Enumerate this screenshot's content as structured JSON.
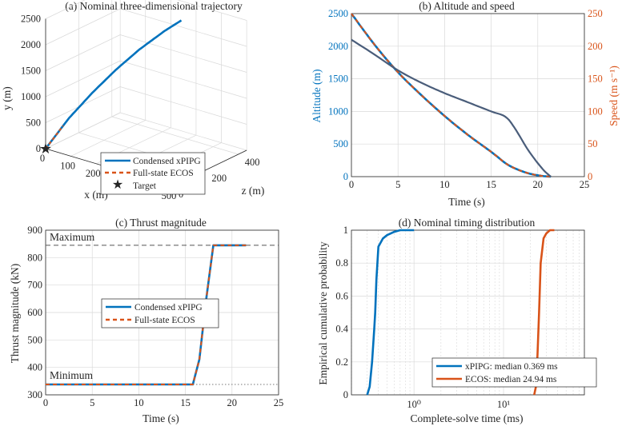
{
  "colors": {
    "blue": "#0072BD",
    "orange": "#D95319",
    "dark": "#4a5d7a",
    "axis": "#262626",
    "grid": "#d9d9d9"
  },
  "chart_data": [
    {
      "id": "a",
      "type": "line",
      "title": "(a) Nominal three-dimensional trajectory",
      "xlabel": "x (m)",
      "ylabel": "y (m)",
      "zlabel": "z (m)",
      "x_ticks": [
        "0",
        "100",
        "200",
        "300",
        "400",
        "500"
      ],
      "y_ticks": [
        "0",
        "500",
        "1000",
        "1500",
        "2000",
        "2500"
      ],
      "z_ticks": [
        "0",
        "200",
        "400"
      ],
      "xlim": [
        0,
        500
      ],
      "ylim": [
        0,
        2500
      ],
      "zlim": [
        0,
        450
      ],
      "legend": [
        "Condensed xPIPG",
        "Full-state ECOS",
        "Target"
      ],
      "series": [
        {
          "name": "Condensed xPIPG",
          "points": [
            [
              0,
              0,
              0
            ],
            [
              60,
              600,
              50
            ],
            [
              120,
              1100,
              100
            ],
            [
              180,
              1550,
              150
            ],
            [
              240,
              1950,
              200
            ],
            [
              300,
              2300,
              260
            ],
            [
              340,
              2500,
              300
            ]
          ]
        },
        {
          "name": "Target",
          "points": [
            [
              0,
              0,
              0
            ]
          ]
        }
      ]
    },
    {
      "id": "b",
      "type": "line",
      "title": "(b) Altitude and speed",
      "xlabel": "Time (s)",
      "ylabel": "Altitude (m)",
      "y2label": "Speed (m s⁻¹)",
      "xlim": [
        0,
        25
      ],
      "ylim": [
        0,
        2500
      ],
      "y2lim": [
        0,
        250
      ],
      "x_ticks": [
        "0",
        "5",
        "10",
        "15",
        "20",
        "25"
      ],
      "y_ticks": [
        "0",
        "500",
        "1000",
        "1500",
        "2000",
        "2500"
      ],
      "y2_ticks": [
        "0",
        "50",
        "100",
        "150",
        "200",
        "250"
      ],
      "x": [
        0,
        2.5,
        5,
        7.5,
        10,
        12.5,
        15,
        16.5,
        17.5,
        19,
        20.5,
        21.4
      ],
      "series": [
        {
          "axis": "left",
          "values": [
            2500,
            2020,
            1600,
            1250,
            930,
            640,
            380,
            210,
            130,
            50,
            10,
            0
          ]
        },
        {
          "axis": "right",
          "values": [
            210,
            187,
            163,
            144,
            128,
            114,
            100,
            92,
            75,
            40,
            12,
            0
          ]
        }
      ]
    },
    {
      "id": "c",
      "type": "line",
      "title": "(c) Thrust magnitude",
      "xlabel": "Time (s)",
      "ylabel": "Thrust magnitude (kN)",
      "xlim": [
        0,
        25
      ],
      "ylim": [
        300,
        900
      ],
      "x_ticks": [
        "0",
        "5",
        "10",
        "15",
        "20",
        "25"
      ],
      "y_ticks": [
        "300",
        "400",
        "500",
        "600",
        "700",
        "800",
        "900"
      ],
      "annotations": [
        "Maximum",
        "Minimum"
      ],
      "max_line": 845,
      "min_line": 338,
      "legend": [
        "Condensed xPIPG",
        "Full-state ECOS"
      ],
      "x": [
        0,
        15.8,
        16.5,
        17.2,
        18.0,
        21.5
      ],
      "series": [
        {
          "name": "Condensed xPIPG",
          "values": [
            338,
            338,
            430,
            640,
            845,
            845
          ]
        },
        {
          "name": "Full-state ECOS",
          "values": [
            338,
            338,
            430,
            640,
            845,
            845
          ]
        }
      ]
    },
    {
      "id": "d",
      "type": "line",
      "title": "(d) Nominal timing distribution",
      "xlabel": "Complete-solve time (ms)",
      "ylabel": "Empirical cumulative probability",
      "xscale": "log",
      "xlim": [
        0.2,
        80
      ],
      "ylim": [
        0,
        1
      ],
      "x_ticks": [
        "10⁰",
        "10¹"
      ],
      "y_ticks": [
        "0",
        "0.2",
        "0.4",
        "0.6",
        "0.8",
        "1"
      ],
      "legend": [
        "xPIPG: median 0.369 ms",
        "ECOS: median 24.94 ms"
      ],
      "series": [
        {
          "name": "xPIPG: median 0.369 ms",
          "x": [
            0.3,
            0.32,
            0.34,
            0.36,
            0.369,
            0.38,
            0.4,
            0.45,
            0.5,
            0.6,
            0.7,
            1.0
          ],
          "values": [
            0,
            0.05,
            0.2,
            0.4,
            0.5,
            0.7,
            0.9,
            0.95,
            0.97,
            0.99,
            1,
            1
          ]
        },
        {
          "name": "ECOS: median 24.94 ms",
          "x": [
            22,
            23,
            24,
            24.94,
            26,
            28,
            30,
            33,
            37
          ],
          "values": [
            0,
            0.05,
            0.25,
            0.5,
            0.8,
            0.95,
            0.98,
            1,
            1
          ]
        }
      ]
    }
  ]
}
